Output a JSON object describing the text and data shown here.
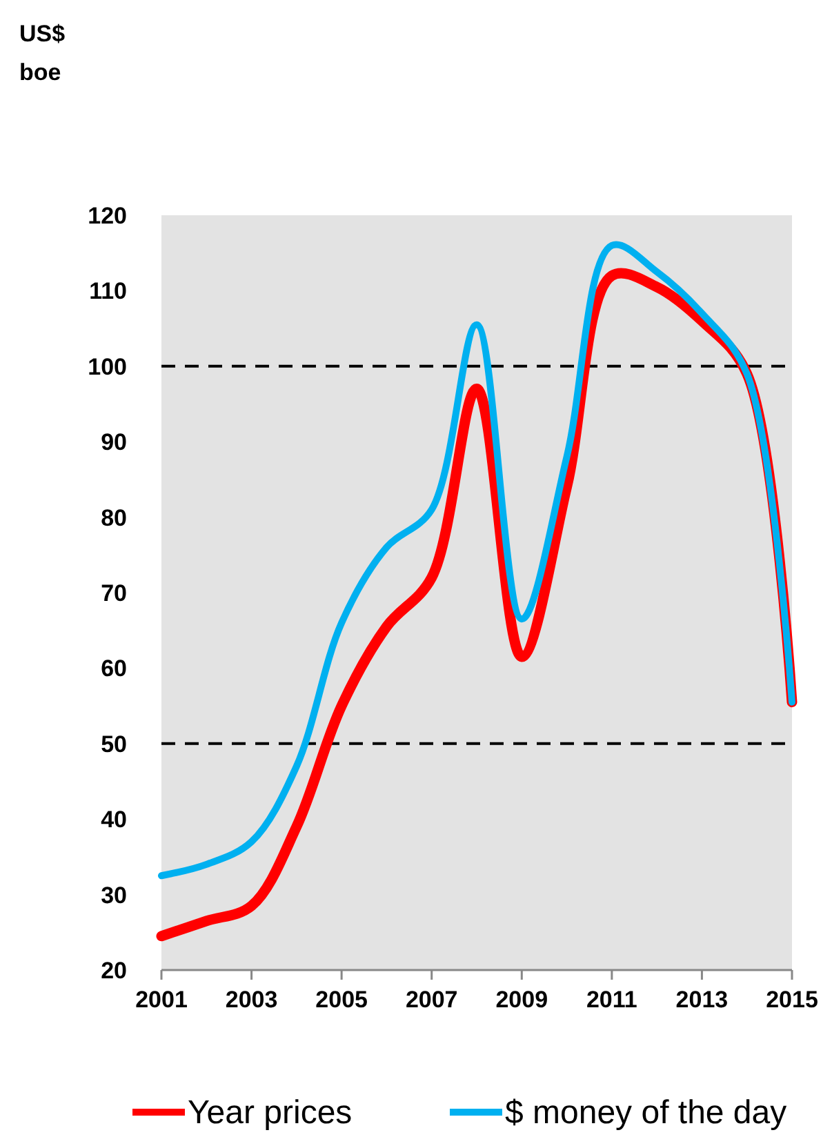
{
  "chart_data": {
    "type": "line",
    "annotations": [
      "US$\nboe"
    ],
    "x": [
      2001,
      2002,
      2003,
      2004,
      2005,
      2006,
      2007,
      2008,
      2009,
      2010,
      2011,
      2012,
      2013,
      2014,
      2015
    ],
    "xlim": [
      2001,
      2015
    ],
    "xticks": [
      2001,
      2003,
      2005,
      2007,
      2009,
      2011,
      2013,
      2015
    ],
    "ylim": [
      20,
      120
    ],
    "yticks": [
      20,
      30,
      40,
      50,
      60,
      70,
      80,
      90,
      100,
      110,
      120
    ],
    "series": [
      {
        "name": "Year prices",
        "color": "#ff0000",
        "values": [
          24.5,
          26.5,
          28.5,
          39,
          55,
          65.5,
          72,
          97,
          61.5,
          84,
          112,
          110.5,
          106,
          99,
          55.5
        ]
      },
      {
        "name": "$ money of the day",
        "color": "#00b0f0",
        "values": [
          32.5,
          34,
          37,
          47,
          66,
          76,
          81,
          105.5,
          66.5,
          88,
          116,
          112.5,
          107,
          99,
          55.5
        ]
      }
    ],
    "ref_lines": [
      {
        "axis": "y",
        "value": 100,
        "color": "#000000",
        "line_style": "dashed"
      },
      {
        "axis": "y",
        "value": 50,
        "color": "#000000",
        "line_style": "dashed"
      }
    ],
    "grid": false,
    "legend": "bottom",
    "line_style": "solid",
    "marker": "none"
  }
}
